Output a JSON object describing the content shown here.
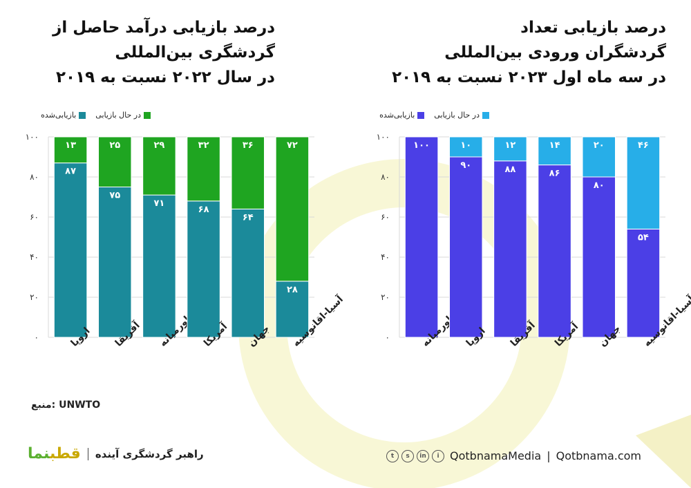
{
  "left": {
    "title_lines": [
      "درصد بازیابی درآمد حاصل از",
      "گردشگری بین‌المللی",
      "در سال ۲۰۲۲ نسبت به ۲۰۱۹"
    ],
    "legend": {
      "recovering": "در حال بازیابی",
      "recovered": "بازیابی‌شده"
    },
    "source": "UNWTO :منبع"
  },
  "right": {
    "title_lines": [
      "درصد بازیابی تعداد",
      "گردشگران ورودی بین‌المللی",
      "در سه ماه اول ۲۰۲۳ نسبت به ۲۰۱۹"
    ],
    "legend": {
      "recovering": "در حال بازیابی",
      "recovered": "بازیابی‌شده"
    }
  },
  "chart_data": [
    {
      "type": "bar",
      "stacked": true,
      "title": "درصد بازیابی درآمد حاصل از گردشگری بین‌المللی در سال ۲۰۲۲ نسبت به ۲۰۱۹",
      "categories": [
        "اروپا",
        "آفریقا",
        "خاورمیانه",
        "آمریکا",
        "جهان",
        "آسیا-اقانوسیه"
      ],
      "ylim": [
        0,
        100
      ],
      "yticks": [
        0,
        20,
        40,
        60,
        80,
        100
      ],
      "ytick_labels": [
        "۰",
        "۲۰",
        "۴۰",
        "۶۰",
        "۸۰",
        "۱۰۰"
      ],
      "series": [
        {
          "name": "بازیابی‌شده",
          "color": "#1b8a9a",
          "values": [
            87,
            75,
            71,
            68,
            64,
            28
          ],
          "labels": [
            "۸۷",
            "۷۵",
            "۷۱",
            "۶۸",
            "۶۴",
            "۲۸"
          ]
        },
        {
          "name": "در حال بازیابی",
          "color": "#1fa521",
          "values": [
            13,
            25,
            29,
            32,
            36,
            72
          ],
          "labels": [
            "۱۳",
            "۲۵",
            "۲۹",
            "۳۲",
            "۳۶",
            "۷۲"
          ]
        }
      ]
    },
    {
      "type": "bar",
      "stacked": true,
      "title": "درصد بازیابی تعداد گردشگران ورودی بین‌المللی در سه ماه اول ۲۰۲۳ نسبت به ۲۰۱۹",
      "categories": [
        "خاورمیانه",
        "اروپا",
        "آفریقا",
        "آمریکا",
        "جهان",
        "آسیا-اقانوسیه"
      ],
      "ylim": [
        0,
        100
      ],
      "yticks": [
        0,
        20,
        40,
        60,
        80,
        100
      ],
      "ytick_labels": [
        "۰",
        "۲۰",
        "۴۰",
        "۶۰",
        "۸۰",
        "۱۰۰"
      ],
      "series": [
        {
          "name": "بازیابی‌شده",
          "color": "#4b3fe6",
          "values": [
            100,
            90,
            88,
            86,
            80,
            54
          ],
          "labels": [
            "۱۰۰",
            "۹۰",
            "۸۸",
            "۸۶",
            "۸۰",
            "۵۴"
          ]
        },
        {
          "name": "در حال بازیابی",
          "color": "#27aee8",
          "values": [
            0,
            10,
            12,
            14,
            20,
            46
          ],
          "labels": [
            "",
            "۱۰",
            "۱۲",
            "۱۴",
            "۲۰",
            "۴۶"
          ]
        }
      ]
    }
  ],
  "footer": {
    "logo": {
      "part1": "قطب",
      "part2": "نما"
    },
    "tagline": "راهبر گردشگری آینده",
    "handle": "QotbnamaMedia",
    "divider": "|",
    "site": "Qotbnama.com",
    "social": [
      "t",
      "s",
      "in",
      "i"
    ]
  },
  "colors": {
    "left_recovered": "#1b8a9a",
    "left_recovering": "#1fa521",
    "right_recovered": "#4b3fe6",
    "right_recovering": "#27aee8"
  }
}
